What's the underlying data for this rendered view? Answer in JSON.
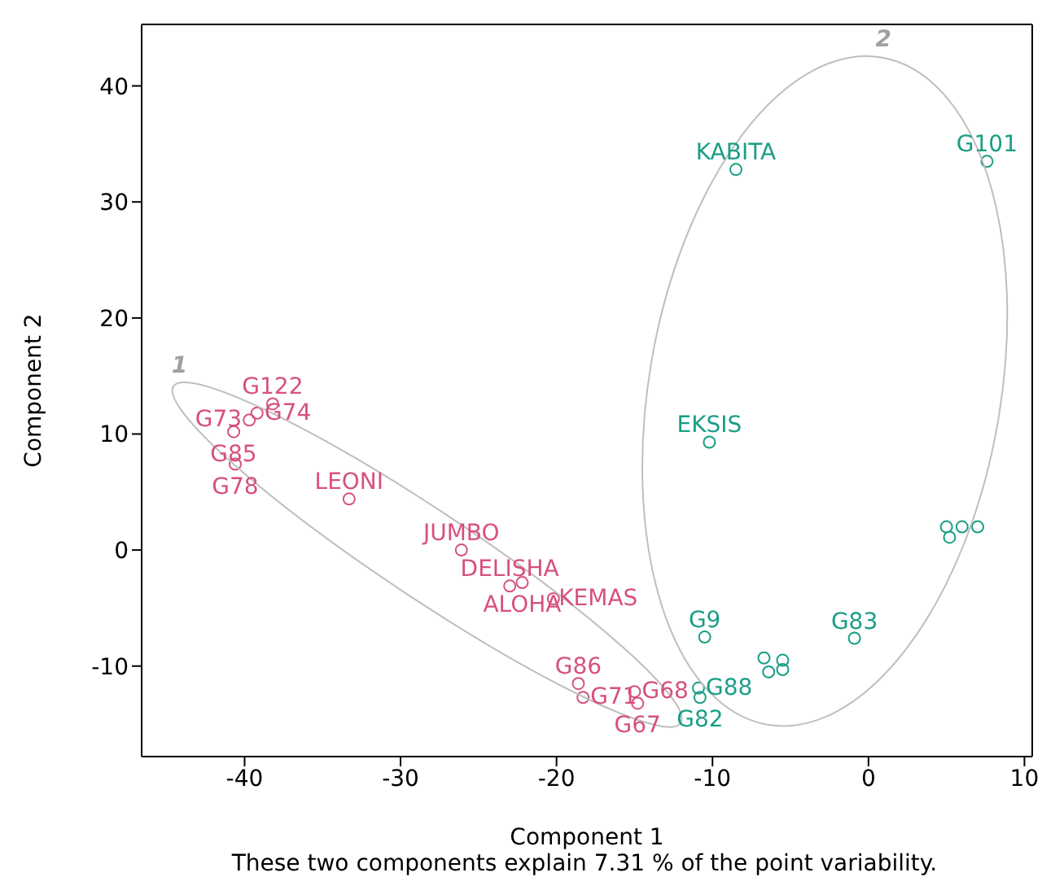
{
  "chart_data": {
    "type": "scatter",
    "xlabel": "Component 1",
    "ylabel": "Component 2",
    "xlim": [
      -46.6,
      10.5
    ],
    "ylim": [
      -17.8,
      45.3
    ],
    "xticks": [
      -40,
      -30,
      -20,
      -10,
      0,
      10
    ],
    "yticks": [
      -10,
      0,
      10,
      20,
      30,
      40
    ],
    "grid": false,
    "legend": false,
    "marker": "circle",
    "series": [
      {
        "color": "#d6517d",
        "x": [
          -38.2,
          -39.2,
          -39.7,
          -40.7,
          -40.6,
          -33.3,
          -26.1,
          -23.0,
          -22.2,
          -20.2,
          -18.6,
          -18.3,
          -15.0,
          -14.8
        ],
        "values": [
          12.6,
          11.8,
          11.2,
          10.2,
          7.4,
          4.4,
          0.0,
          -3.1,
          -2.8,
          -4.2,
          -11.5,
          -12.7,
          -12.2,
          -13.2
        ]
      },
      {
        "color": "#1a9e86",
        "x": [
          -8.5,
          7.6,
          -10.2,
          -10.5,
          -10.9,
          -10.8,
          -6.4,
          -6.7,
          -5.5,
          -5.5,
          -0.9,
          5.2,
          5.0,
          6.0,
          7.0
        ],
        "values": [
          32.8,
          33.5,
          9.3,
          -7.5,
          -11.9,
          -12.7,
          -10.5,
          -9.3,
          -9.5,
          -10.3,
          -7.6,
          1.1,
          2.0,
          2.0,
          2.0
        ]
      }
    ],
    "annotations": [
      "1",
      "2",
      {
        "text": "G122",
        "x": -38.2,
        "y": 12.6
      },
      {
        "text": "G74",
        "x": -39.2,
        "y": 11.8
      },
      {
        "text": "G73",
        "x": -39.7,
        "y": 11.2
      },
      {
        "text": "G85",
        "x": -40.7,
        "y": 10.2
      },
      {
        "text": "G78",
        "x": -40.6,
        "y": 7.4
      },
      {
        "text": "LEONI",
        "x": -33.3,
        "y": 4.4
      },
      {
        "text": "JUMBO",
        "x": -26.1,
        "y": 0.0
      },
      {
        "text": "DELISHA",
        "x": -23.0,
        "y": -3.1
      },
      {
        "text": "ALOHA",
        "x": -22.2,
        "y": -2.8
      },
      {
        "text": "KEMAS",
        "x": -20.2,
        "y": -4.2
      },
      {
        "text": "G86",
        "x": -18.6,
        "y": -11.5
      },
      {
        "text": "G71",
        "x": -18.3,
        "y": -12.7
      },
      {
        "text": "G68",
        "x": -15.0,
        "y": -12.2
      },
      {
        "text": "G67",
        "x": -14.8,
        "y": -13.2
      },
      {
        "text": "KABITA",
        "x": -8.5,
        "y": 32.8
      },
      {
        "text": "G101",
        "x": 7.6,
        "y": 33.5
      },
      {
        "text": "EKSIS",
        "x": -10.2,
        "y": 9.3
      },
      {
        "text": "G9",
        "x": -10.5,
        "y": -7.5
      },
      {
        "text": "G88",
        "x": -10.9,
        "y": -11.9
      },
      {
        "text": "G82",
        "x": -10.8,
        "y": -12.7
      },
      {
        "text": "G83",
        "x": -0.9,
        "y": -7.6
      },
      "These two components explain 7.31 % of the point variability."
    ]
  }
}
